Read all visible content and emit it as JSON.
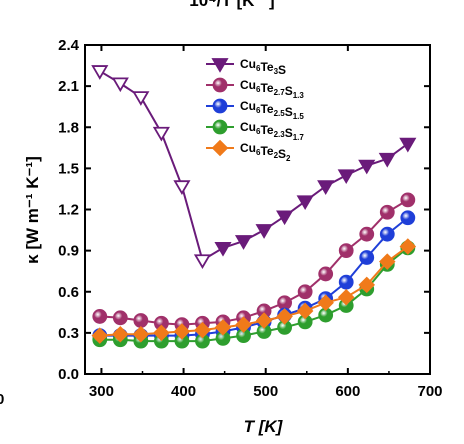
{
  "chart_data": {
    "type": "line",
    "top_axis_fragment": "10⁴/T [K⁻¹]",
    "left_edge_fragment": "0",
    "xlabel": "T [K]",
    "ylabel": "κ [W m⁻¹ K⁻¹]",
    "xlim": [
      280,
      700
    ],
    "ylim": [
      0.0,
      2.4
    ],
    "x_ticks": [
      300,
      400,
      500,
      600,
      700
    ],
    "y_ticks": [
      0.0,
      0.3,
      0.6,
      0.9,
      1.2,
      1.5,
      1.8,
      2.1,
      2.4
    ],
    "legend_position": "top-right",
    "series": [
      {
        "name": "Cu6Te3S",
        "label_parts": [
          [
            "Cu",
            ""
          ],
          [
            "6",
            "sub"
          ],
          [
            "Te",
            ""
          ],
          [
            "3",
            "sub"
          ],
          [
            "S",
            ""
          ]
        ],
        "color": "#6a1b7a",
        "marker": "triangle-down",
        "x": [
          298,
          323,
          348,
          373,
          398,
          423,
          448,
          473,
          498,
          523,
          548,
          573,
          598,
          623,
          648,
          673
        ],
        "y": [
          2.21,
          2.12,
          2.02,
          1.76,
          1.37,
          0.83,
          0.92,
          0.97,
          1.05,
          1.15,
          1.26,
          1.37,
          1.45,
          1.52,
          1.57,
          1.68
        ],
        "hollow_until": 5
      },
      {
        "name": "Cu6Te2.7S1.3",
        "label_parts": [
          [
            "Cu",
            ""
          ],
          [
            "6",
            "sub"
          ],
          [
            "Te",
            ""
          ],
          [
            "2.7",
            "sub"
          ],
          [
            "S",
            ""
          ],
          [
            "1.3",
            "sub"
          ]
        ],
        "color": "#a0306a",
        "marker": "circle",
        "x": [
          298,
          323,
          348,
          373,
          398,
          423,
          448,
          473,
          498,
          523,
          548,
          573,
          598,
          623,
          648,
          673
        ],
        "y": [
          0.42,
          0.41,
          0.39,
          0.37,
          0.36,
          0.37,
          0.38,
          0.41,
          0.46,
          0.52,
          0.6,
          0.73,
          0.9,
          1.02,
          1.18,
          1.27
        ]
      },
      {
        "name": "Cu6Te2.5S1.5",
        "label_parts": [
          [
            "Cu",
            ""
          ],
          [
            "6",
            "sub"
          ],
          [
            "Te",
            ""
          ],
          [
            "2.5",
            "sub"
          ],
          [
            "S",
            ""
          ],
          [
            "1.5",
            "sub"
          ]
        ],
        "color": "#1f3fd8",
        "marker": "circle",
        "x": [
          298,
          323,
          348,
          373,
          398,
          423,
          448,
          473,
          498,
          523,
          548,
          573,
          598,
          623,
          648,
          673
        ],
        "y": [
          0.28,
          0.28,
          0.28,
          0.28,
          0.28,
          0.29,
          0.31,
          0.34,
          0.38,
          0.43,
          0.48,
          0.55,
          0.67,
          0.85,
          1.02,
          1.14
        ]
      },
      {
        "name": "Cu6Te2.3S1.7",
        "label_parts": [
          [
            "Cu",
            ""
          ],
          [
            "6",
            "sub"
          ],
          [
            "Te",
            ""
          ],
          [
            "2.3",
            "sub"
          ],
          [
            "S",
            ""
          ],
          [
            "1.7",
            "sub"
          ]
        ],
        "color": "#2e9e2e",
        "marker": "circle",
        "x": [
          298,
          323,
          348,
          373,
          398,
          423,
          448,
          473,
          498,
          523,
          548,
          573,
          598,
          623,
          648,
          673
        ],
        "y": [
          0.25,
          0.25,
          0.24,
          0.24,
          0.24,
          0.24,
          0.26,
          0.28,
          0.31,
          0.34,
          0.38,
          0.43,
          0.5,
          0.62,
          0.8,
          0.92
        ]
      },
      {
        "name": "Cu6Te2S2",
        "label_parts": [
          [
            "Cu",
            ""
          ],
          [
            "6",
            "sub"
          ],
          [
            "Te",
            ""
          ],
          [
            "2",
            "sub"
          ],
          [
            "S",
            ""
          ],
          [
            "2",
            "sub"
          ]
        ],
        "color": "#f07a1a",
        "marker": "diamond",
        "x": [
          298,
          323,
          348,
          373,
          398,
          423,
          448,
          473,
          498,
          523,
          548,
          573,
          598,
          623,
          648,
          673
        ],
        "y": [
          0.28,
          0.29,
          0.29,
          0.3,
          0.31,
          0.32,
          0.34,
          0.36,
          0.39,
          0.42,
          0.46,
          0.52,
          0.56,
          0.65,
          0.82,
          0.93
        ]
      }
    ]
  }
}
